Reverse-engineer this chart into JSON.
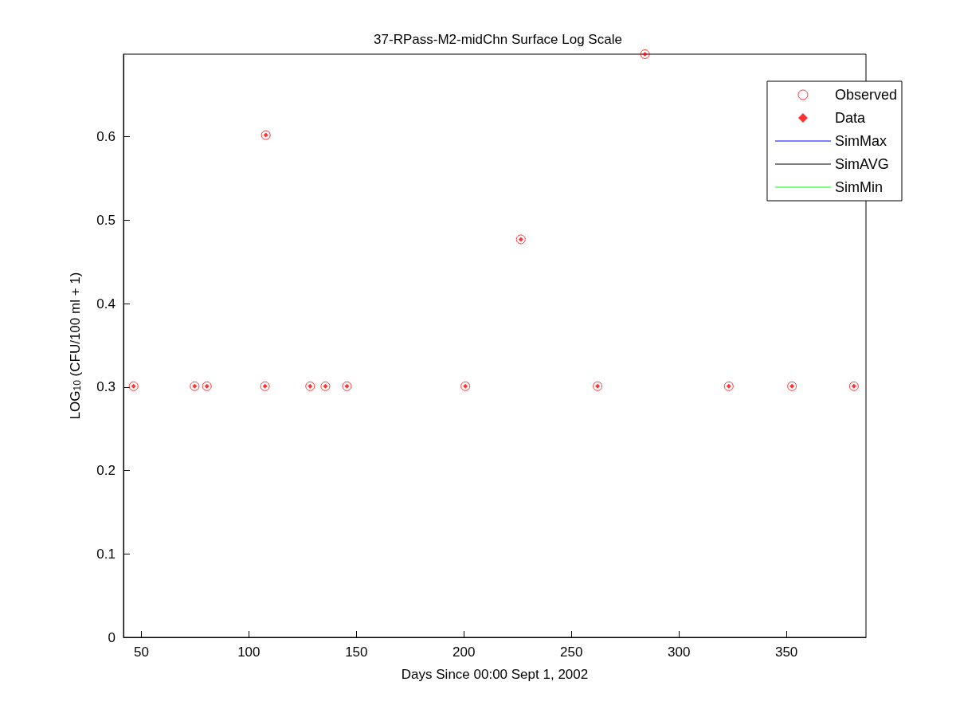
{
  "chart_data": {
    "type": "scatter",
    "title": "37-RPass-M2-midChn Surface Log Scale",
    "xlabel": "Days Since 00:00 Sept 1, 2002",
    "ylabel": "LOG$_{10}$ (CFU/100 ml + 1)",
    "x": [
      46.4,
      74.8,
      80.5,
      107.5,
      107.9,
      128.5,
      135.6,
      145.6,
      200.7,
      226.5,
      262.2,
      284.2,
      323.2,
      352.6,
      381.4
    ],
    "series": [
      {
        "name": "Observed",
        "marker": "circle",
        "color": "#ff0000",
        "values": [
          0.301,
          0.301,
          0.301,
          0.301,
          0.602,
          0.301,
          0.301,
          0.301,
          0.301,
          0.477,
          0.301,
          0.699,
          0.301,
          0.301,
          0.301
        ]
      },
      {
        "name": "Data",
        "marker": "diamond",
        "color": "#ff0000",
        "values": [
          0.301,
          0.301,
          0.301,
          0.301,
          0.602,
          0.301,
          0.301,
          0.301,
          0.301,
          0.477,
          0.301,
          0.699,
          0.301,
          0.301,
          0.301
        ]
      },
      {
        "name": "SimMax",
        "type": "line",
        "marker": "none",
        "color": "#0000ff",
        "values": [
          null,
          null,
          null,
          null,
          null,
          null,
          null,
          null,
          null,
          null,
          null,
          null,
          null,
          null,
          null
        ]
      },
      {
        "name": "SimAVG",
        "type": "line",
        "marker": "none",
        "color": "#000000",
        "values": [
          null,
          null,
          null,
          null,
          null,
          null,
          null,
          null,
          null,
          null,
          null,
          null,
          null,
          null,
          null
        ]
      },
      {
        "name": "SimMin",
        "type": "line",
        "marker": "none",
        "color": "#00ff00",
        "values": [
          null,
          null,
          null,
          null,
          null,
          null,
          null,
          null,
          null,
          null,
          null,
          null,
          null,
          null,
          null
        ]
      }
    ],
    "xlim": [
      41.7,
      387
    ],
    "xticks": [
      50,
      100,
      150,
      200,
      250,
      300,
      350
    ],
    "ylim": [
      0,
      0.699
    ],
    "yticks": [
      0,
      0.1,
      0.2,
      0.3,
      0.4,
      0.5,
      0.6
    ],
    "grid": false,
    "legend": "top right"
  }
}
